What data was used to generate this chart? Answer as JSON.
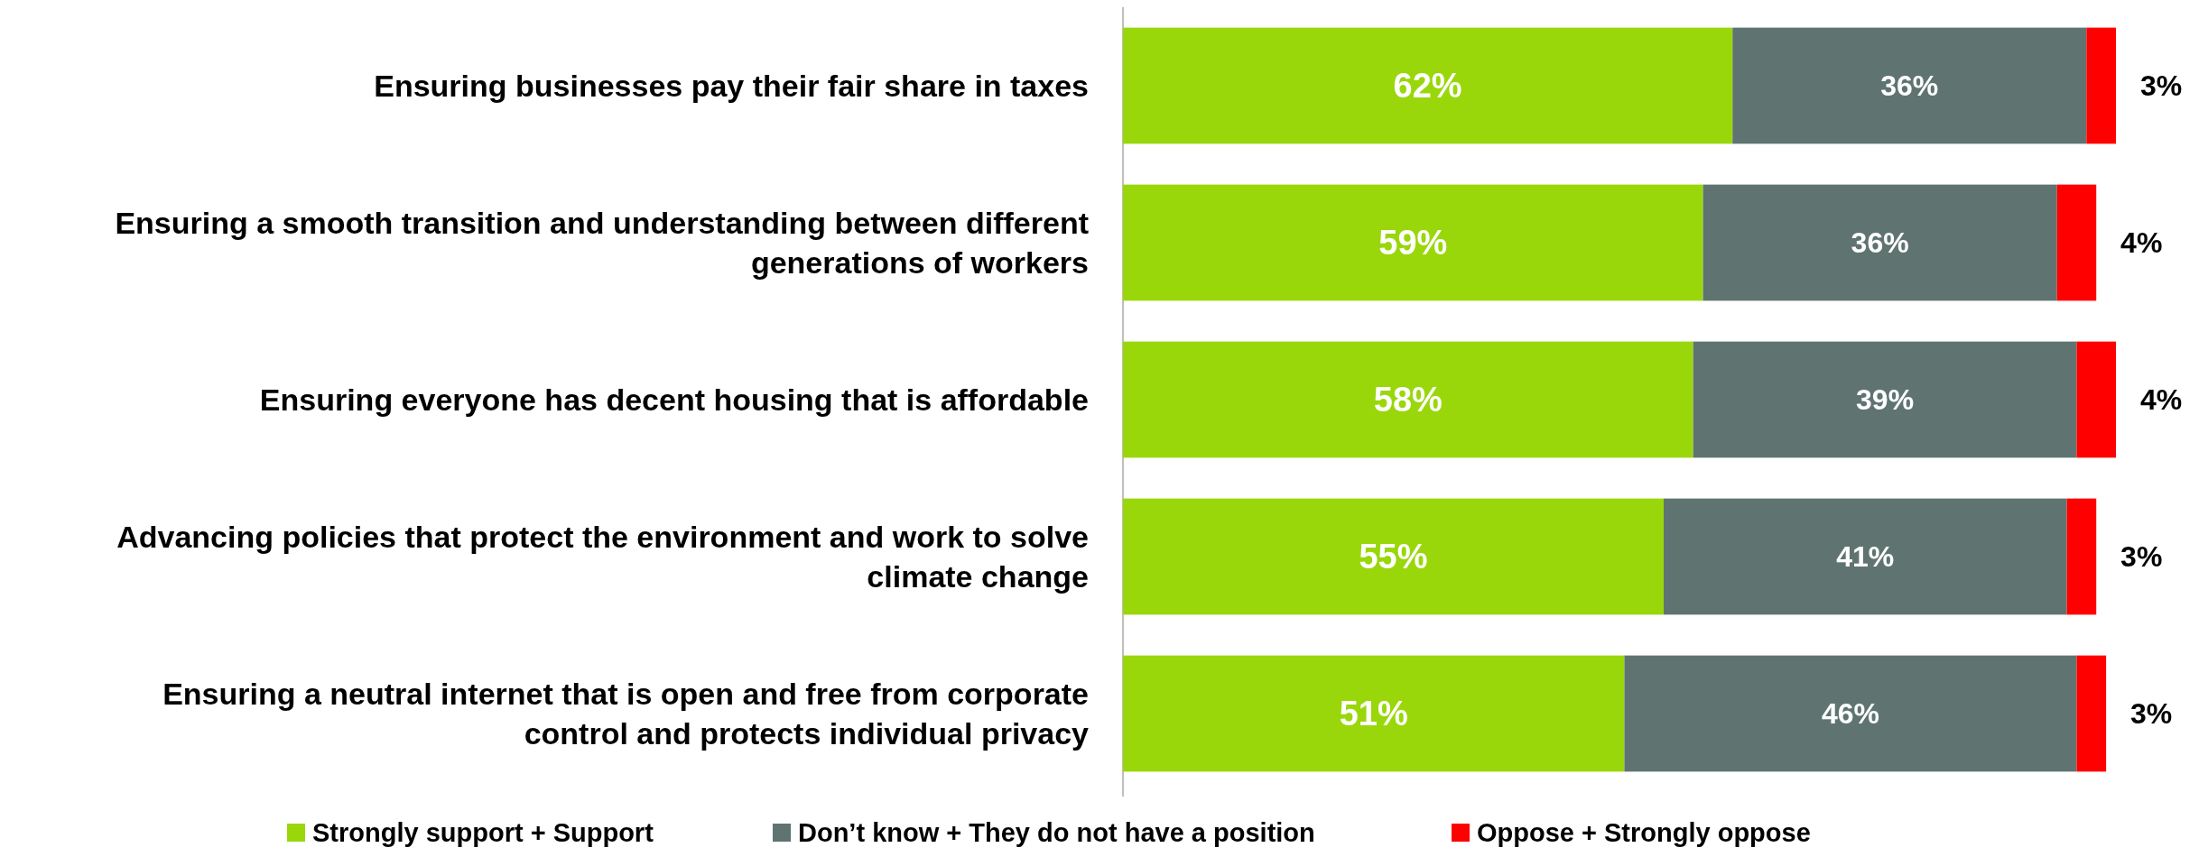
{
  "chart_data": {
    "type": "bar",
    "orientation": "horizontal",
    "stacked": true,
    "legend": "bottom",
    "categories": [
      "Ensuring businesses pay their fair share in taxes",
      "Ensuring a smooth transition and understanding between different generations of workers",
      "Ensuring everyone has decent housing that is affordable",
      "Advancing policies that protect the environment and work to solve climate change",
      "Ensuring a neutral internet that is open and free from corporate control and protects individual privacy"
    ],
    "series": [
      {
        "name": "Strongly support + Support",
        "color": "#99d70b",
        "values": [
          62,
          59,
          58,
          55,
          51
        ],
        "value_labels": [
          "62%",
          "59%",
          "58%",
          "55%",
          "51%"
        ]
      },
      {
        "name": "Don’t know + They do not have a position",
        "color": "#5f7470",
        "values": [
          36,
          36,
          39,
          41,
          46
        ],
        "value_labels": [
          "36%",
          "36%",
          "39%",
          "41%",
          "46%"
        ]
      },
      {
        "name": "Oppose + Strongly oppose",
        "color": "#ff0000",
        "values": [
          3,
          4,
          4,
          3,
          3
        ],
        "value_labels": [
          "3%",
          "4%",
          "4%",
          "3%",
          "3%"
        ]
      }
    ]
  }
}
